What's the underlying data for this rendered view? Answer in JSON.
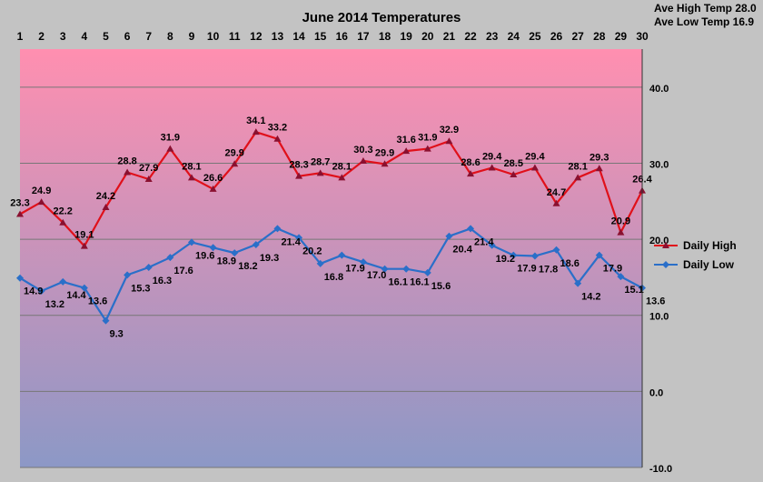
{
  "chart_data": {
    "type": "line",
    "title": "June 2014 Temperatures",
    "xlabel": "",
    "ylabel": "",
    "x": [
      1,
      2,
      3,
      4,
      5,
      6,
      7,
      8,
      9,
      10,
      11,
      12,
      13,
      14,
      15,
      16,
      17,
      18,
      19,
      20,
      21,
      22,
      23,
      24,
      25,
      26,
      27,
      28,
      29,
      30
    ],
    "ylim": [
      -10,
      45
    ],
    "yticks": [
      -10,
      0,
      10,
      20,
      30,
      40
    ],
    "ytick_labels": [
      "-10.0",
      "0.0",
      "10.0",
      "20.0",
      "30.0",
      "40.0"
    ],
    "grid": true,
    "legend_position": "right",
    "annotations": [
      "Ave High Temp 28.0",
      "Ave Low Temp 16.9"
    ],
    "series": [
      {
        "name": "Daily High",
        "color": "#e0101a",
        "marker_color": "#8a1030",
        "values": [
          23.3,
          24.9,
          22.2,
          19.1,
          24.2,
          28.8,
          27.9,
          31.9,
          28.1,
          26.6,
          29.9,
          34.1,
          33.2,
          28.3,
          28.7,
          28.1,
          30.3,
          29.9,
          31.6,
          31.9,
          32.9,
          28.6,
          29.4,
          28.5,
          29.4,
          24.7,
          28.1,
          29.3,
          20.9,
          26.4
        ]
      },
      {
        "name": "Daily Low",
        "color": "#2a6fc9",
        "marker_color": "#2a6fc9",
        "values": [
          14.9,
          13.2,
          14.4,
          13.6,
          9.3,
          15.3,
          16.3,
          17.6,
          19.6,
          18.9,
          18.2,
          19.3,
          21.4,
          20.2,
          16.8,
          17.9,
          17.0,
          16.1,
          16.1,
          15.6,
          20.4,
          21.4,
          19.2,
          17.9,
          17.8,
          18.6,
          14.2,
          17.9,
          15.1,
          13.6
        ],
        "labels": [
          "14.9",
          "13.2",
          "14.4",
          "13.6",
          "9.3",
          "15.3",
          "16.3",
          "17.6",
          "19.6",
          "18.9",
          "18.2",
          "19.3",
          "21.4",
          "20.2",
          "16.8",
          "17.9",
          "17.0",
          "16.1",
          "16.1",
          "15.6",
          "20.4",
          "21.4",
          "19.2",
          "17.9",
          "17.8",
          "18.6",
          "14.2",
          "17.9",
          "15.1",
          "13.6"
        ]
      }
    ],
    "colors": {
      "plot_top": "#ff8fb0",
      "plot_bottom": "#8c98c6",
      "background": "#c3c3c3",
      "grid": "#777777"
    }
  }
}
